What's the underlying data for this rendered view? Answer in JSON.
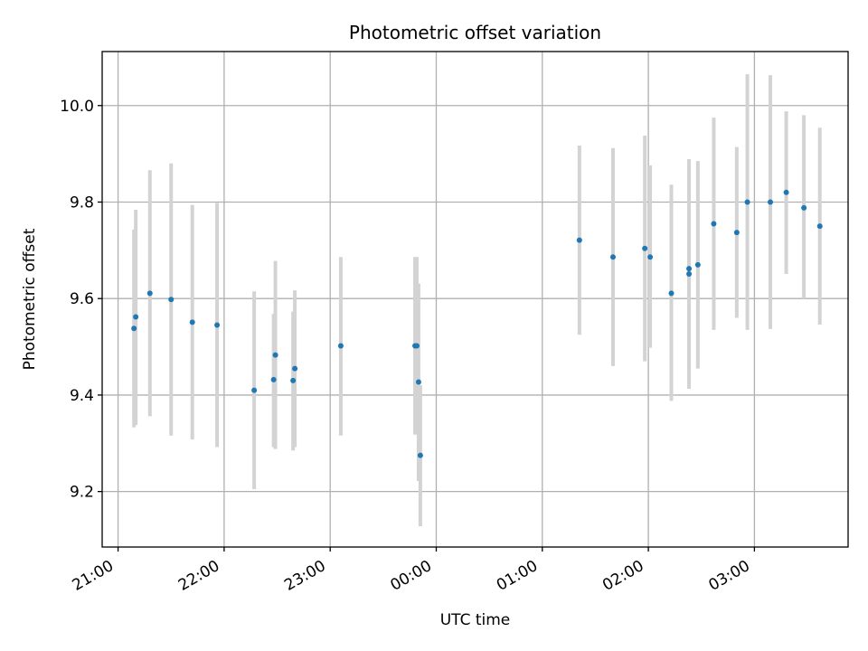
{
  "chart_data": {
    "type": "scatter",
    "title": "Photometric offset variation",
    "xlabel": "UTC time",
    "ylabel": "Photometric offset",
    "xlim": [
      "20:51",
      "03:53"
    ],
    "ylim": [
      9.085,
      10.112
    ],
    "x_ticks": [
      "21:00",
      "22:00",
      "23:00",
      "00:00",
      "01:00",
      "02:00",
      "03:00"
    ],
    "y_ticks": [
      "9.2",
      "9.4",
      "9.6",
      "9.8",
      "10.0"
    ],
    "grid": true,
    "colors": {
      "point": "#1f77b4",
      "errorbar": "#d3d3d3",
      "grid": "#b0b0b0"
    },
    "points": [
      {
        "time": "21:09",
        "y": 9.538,
        "ylo": 9.333,
        "yhi": 9.743
      },
      {
        "time": "21:10",
        "y": 9.562,
        "ylo": 9.338,
        "yhi": 9.784
      },
      {
        "time": "21:18",
        "y": 9.611,
        "ylo": 9.356,
        "yhi": 9.866
      },
      {
        "time": "21:30",
        "y": 9.598,
        "ylo": 9.316,
        "yhi": 9.88
      },
      {
        "time": "21:42",
        "y": 9.551,
        "ylo": 9.308,
        "yhi": 9.794
      },
      {
        "time": "21:56",
        "y": 9.545,
        "ylo": 9.292,
        "yhi": 9.798
      },
      {
        "time": "22:17",
        "y": 9.41,
        "ylo": 9.205,
        "yhi": 9.615
      },
      {
        "time": "22:28",
        "y": 9.432,
        "ylo": 9.292,
        "yhi": 9.568
      },
      {
        "time": "22:29",
        "y": 9.483,
        "ylo": 9.288,
        "yhi": 9.678
      },
      {
        "time": "22:39",
        "y": 9.43,
        "ylo": 9.285,
        "yhi": 9.573
      },
      {
        "time": "22:40",
        "y": 9.455,
        "ylo": 9.292,
        "yhi": 9.617
      },
      {
        "time": "23:06",
        "y": 9.502,
        "ylo": 9.316,
        "yhi": 9.686
      },
      {
        "time": "23:48",
        "y": 9.502,
        "ylo": 9.318,
        "yhi": 9.686
      },
      {
        "time": "23:49",
        "y": 9.502,
        "ylo": 9.318,
        "yhi": 9.686
      },
      {
        "time": "23:50",
        "y": 9.427,
        "ylo": 9.222,
        "yhi": 9.631
      },
      {
        "time": "23:51",
        "y": 9.275,
        "ylo": 9.128,
        "yhi": 9.42
      },
      {
        "time": "01:21",
        "y": 9.721,
        "ylo": 9.525,
        "yhi": 9.917
      },
      {
        "time": "01:40",
        "y": 9.686,
        "ylo": 9.46,
        "yhi": 9.912
      },
      {
        "time": "01:58",
        "y": 9.704,
        "ylo": 9.47,
        "yhi": 9.938
      },
      {
        "time": "02:01",
        "y": 9.686,
        "ylo": 9.498,
        "yhi": 9.876
      },
      {
        "time": "02:13",
        "y": 9.611,
        "ylo": 9.388,
        "yhi": 9.836
      },
      {
        "time": "02:23",
        "y": 9.651,
        "ylo": 9.413,
        "yhi": 9.889
      },
      {
        "time": "02:23",
        "y": 9.662,
        "ylo": 9.452,
        "yhi": 9.872
      },
      {
        "time": "02:28",
        "y": 9.67,
        "ylo": 9.455,
        "yhi": 9.885
      },
      {
        "time": "02:37",
        "y": 9.755,
        "ylo": 9.535,
        "yhi": 9.975
      },
      {
        "time": "02:50",
        "y": 9.737,
        "ylo": 9.56,
        "yhi": 9.914
      },
      {
        "time": "02:56",
        "y": 9.8,
        "ylo": 9.535,
        "yhi": 10.065
      },
      {
        "time": "03:09",
        "y": 9.8,
        "ylo": 9.537,
        "yhi": 10.063
      },
      {
        "time": "03:18",
        "y": 9.82,
        "ylo": 9.651,
        "yhi": 9.988
      },
      {
        "time": "03:28",
        "y": 9.788,
        "ylo": 9.6,
        "yhi": 9.98
      },
      {
        "time": "03:37",
        "y": 9.75,
        "ylo": 9.546,
        "yhi": 9.954
      }
    ]
  }
}
